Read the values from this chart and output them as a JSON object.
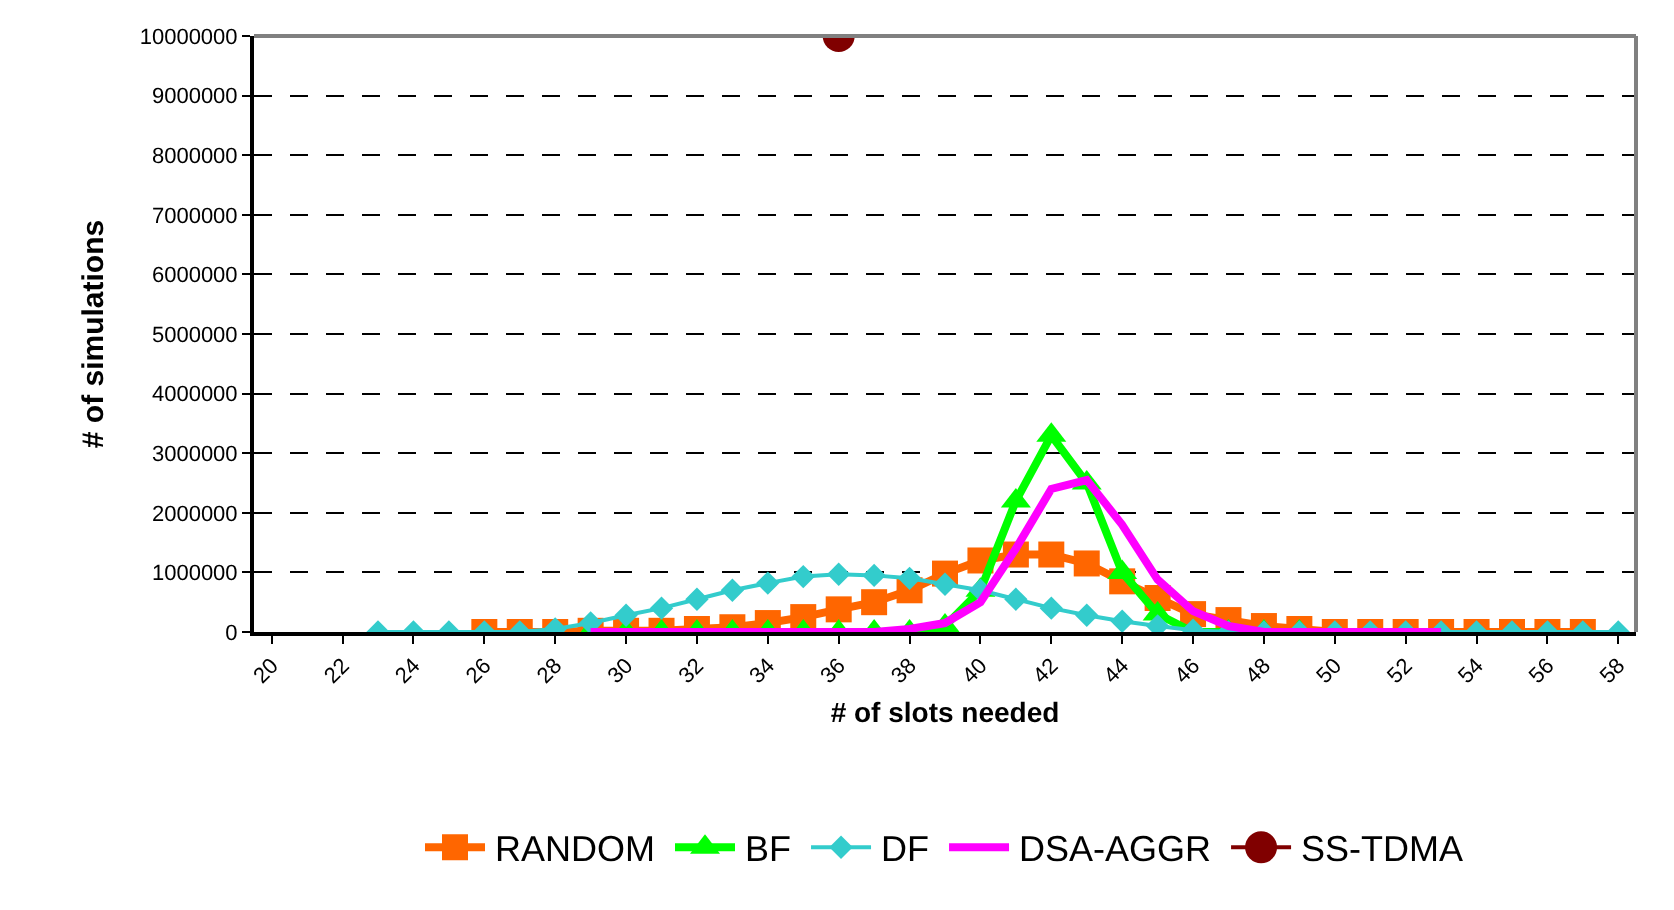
{
  "chart_data": {
    "type": "line",
    "xlabel": "# of slots needed",
    "ylabel": "# of simulations",
    "xlim": [
      19.5,
      58.5
    ],
    "xticks": [
      20,
      22,
      24,
      26,
      28,
      30,
      32,
      34,
      36,
      38,
      40,
      42,
      44,
      46,
      48,
      50,
      52,
      54,
      56,
      58
    ],
    "ylim": [
      0,
      10000000
    ],
    "yticks": [
      0,
      1000000,
      2000000,
      3000000,
      4000000,
      5000000,
      6000000,
      7000000,
      8000000,
      9000000,
      10000000
    ],
    "grid": "y",
    "legend": "bottom",
    "series": [
      {
        "name": "RANDOM",
        "color": "#ff6600",
        "marker": "square",
        "x": [
          26,
          27,
          28,
          29,
          30,
          31,
          32,
          33,
          34,
          35,
          36,
          37,
          38,
          39,
          40,
          41,
          42,
          43,
          44,
          45,
          46,
          47,
          48,
          49,
          50,
          51,
          52,
          53,
          54,
          55,
          56,
          57
        ],
        "values": [
          0,
          0,
          0,
          20000,
          20000,
          20000,
          50000,
          80000,
          150000,
          250000,
          380000,
          500000,
          700000,
          980000,
          1200000,
          1300000,
          1300000,
          1150000,
          850000,
          570000,
          300000,
          200000,
          100000,
          50000,
          0,
          0,
          0,
          0,
          0,
          0,
          0,
          0
        ]
      },
      {
        "name": "BF",
        "color": "#00ff00",
        "marker": "triangle",
        "x": [
          29,
          30,
          31,
          32,
          33,
          34,
          35,
          36,
          37,
          38,
          39,
          40,
          41,
          42,
          43,
          44,
          45,
          46,
          47,
          48,
          49
        ],
        "values": [
          0,
          0,
          0,
          0,
          0,
          0,
          0,
          0,
          0,
          0,
          100000,
          700000,
          2200000,
          3300000,
          2500000,
          1000000,
          300000,
          0,
          0,
          0,
          0
        ]
      },
      {
        "name": "DF",
        "color": "#33cccc",
        "marker": "diamond",
        "x": [
          23,
          24,
          25,
          26,
          27,
          28,
          29,
          30,
          31,
          32,
          33,
          34,
          35,
          36,
          37,
          38,
          39,
          40,
          41,
          42,
          43,
          44,
          45,
          46,
          47,
          48,
          49,
          50,
          51,
          52,
          53,
          54,
          55,
          56,
          57,
          58
        ],
        "values": [
          0,
          0,
          0,
          0,
          0,
          50000,
          150000,
          280000,
          400000,
          550000,
          700000,
          820000,
          930000,
          970000,
          950000,
          900000,
          800000,
          700000,
          550000,
          400000,
          280000,
          180000,
          100000,
          30000,
          0,
          0,
          0,
          0,
          0,
          0,
          0,
          0,
          0,
          0,
          0,
          0
        ]
      },
      {
        "name": "DSA-AGGR",
        "color": "#ff00ff",
        "marker": "none",
        "x": [
          29,
          30,
          31,
          32,
          33,
          34,
          35,
          36,
          37,
          38,
          39,
          40,
          41,
          42,
          43,
          44,
          45,
          46,
          47,
          48,
          49,
          50,
          51,
          52,
          53
        ],
        "values": [
          0,
          0,
          0,
          0,
          0,
          0,
          0,
          0,
          0,
          50000,
          150000,
          500000,
          1400000,
          2400000,
          2550000,
          1800000,
          880000,
          350000,
          100000,
          0,
          0,
          0,
          0,
          0,
          0
        ]
      },
      {
        "name": "SS-TDMA",
        "color": "#800000",
        "marker": "circle",
        "x": [
          36
        ],
        "values": [
          10000000
        ]
      }
    ]
  }
}
